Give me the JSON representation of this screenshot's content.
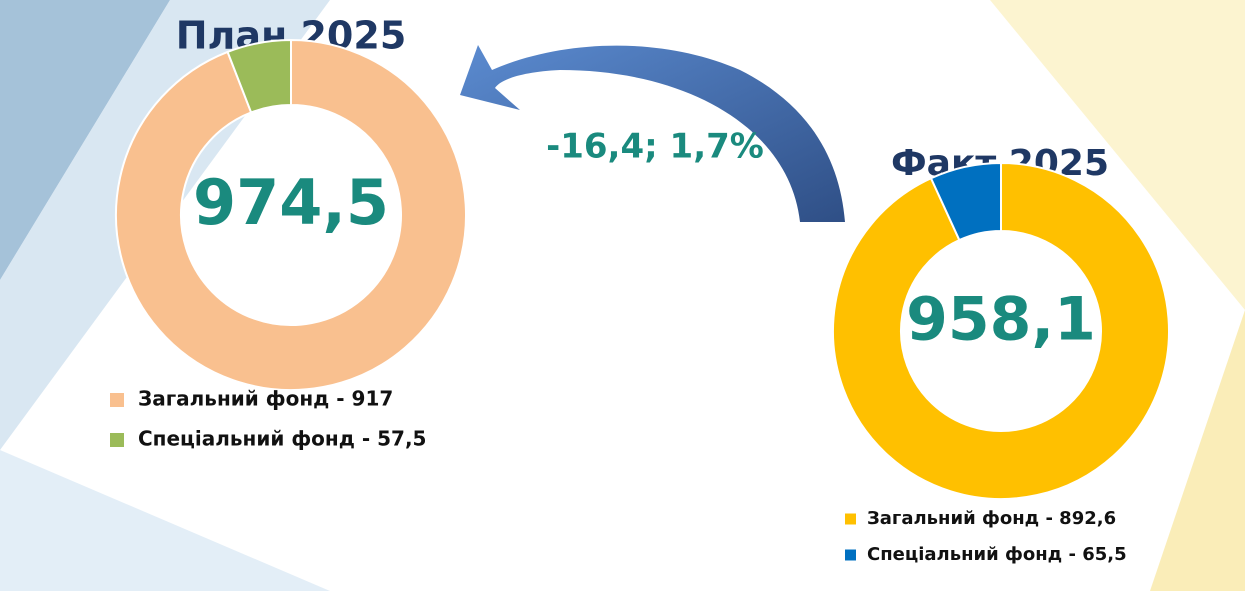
{
  "chart_data": [
    {
      "type": "donut",
      "title": "План 2025",
      "center_label": "974,5",
      "categories": [
        "Загальний фонд - 917",
        "Спеціальний фонд - 57,5"
      ],
      "values": [
        917,
        57.5
      ],
      "colors": [
        "#F9C08F",
        "#9BBB59"
      ]
    },
    {
      "type": "donut",
      "title": "Факт 2025",
      "center_label": "958,1",
      "categories": [
        "Загальний фонд - 892,6",
        "Спеціальний фонд - 65,5"
      ],
      "values": [
        892.6,
        65.5
      ],
      "colors": [
        "#FFC000",
        "#0070C0"
      ]
    }
  ],
  "annotation": "-16,4; 1,7%"
}
